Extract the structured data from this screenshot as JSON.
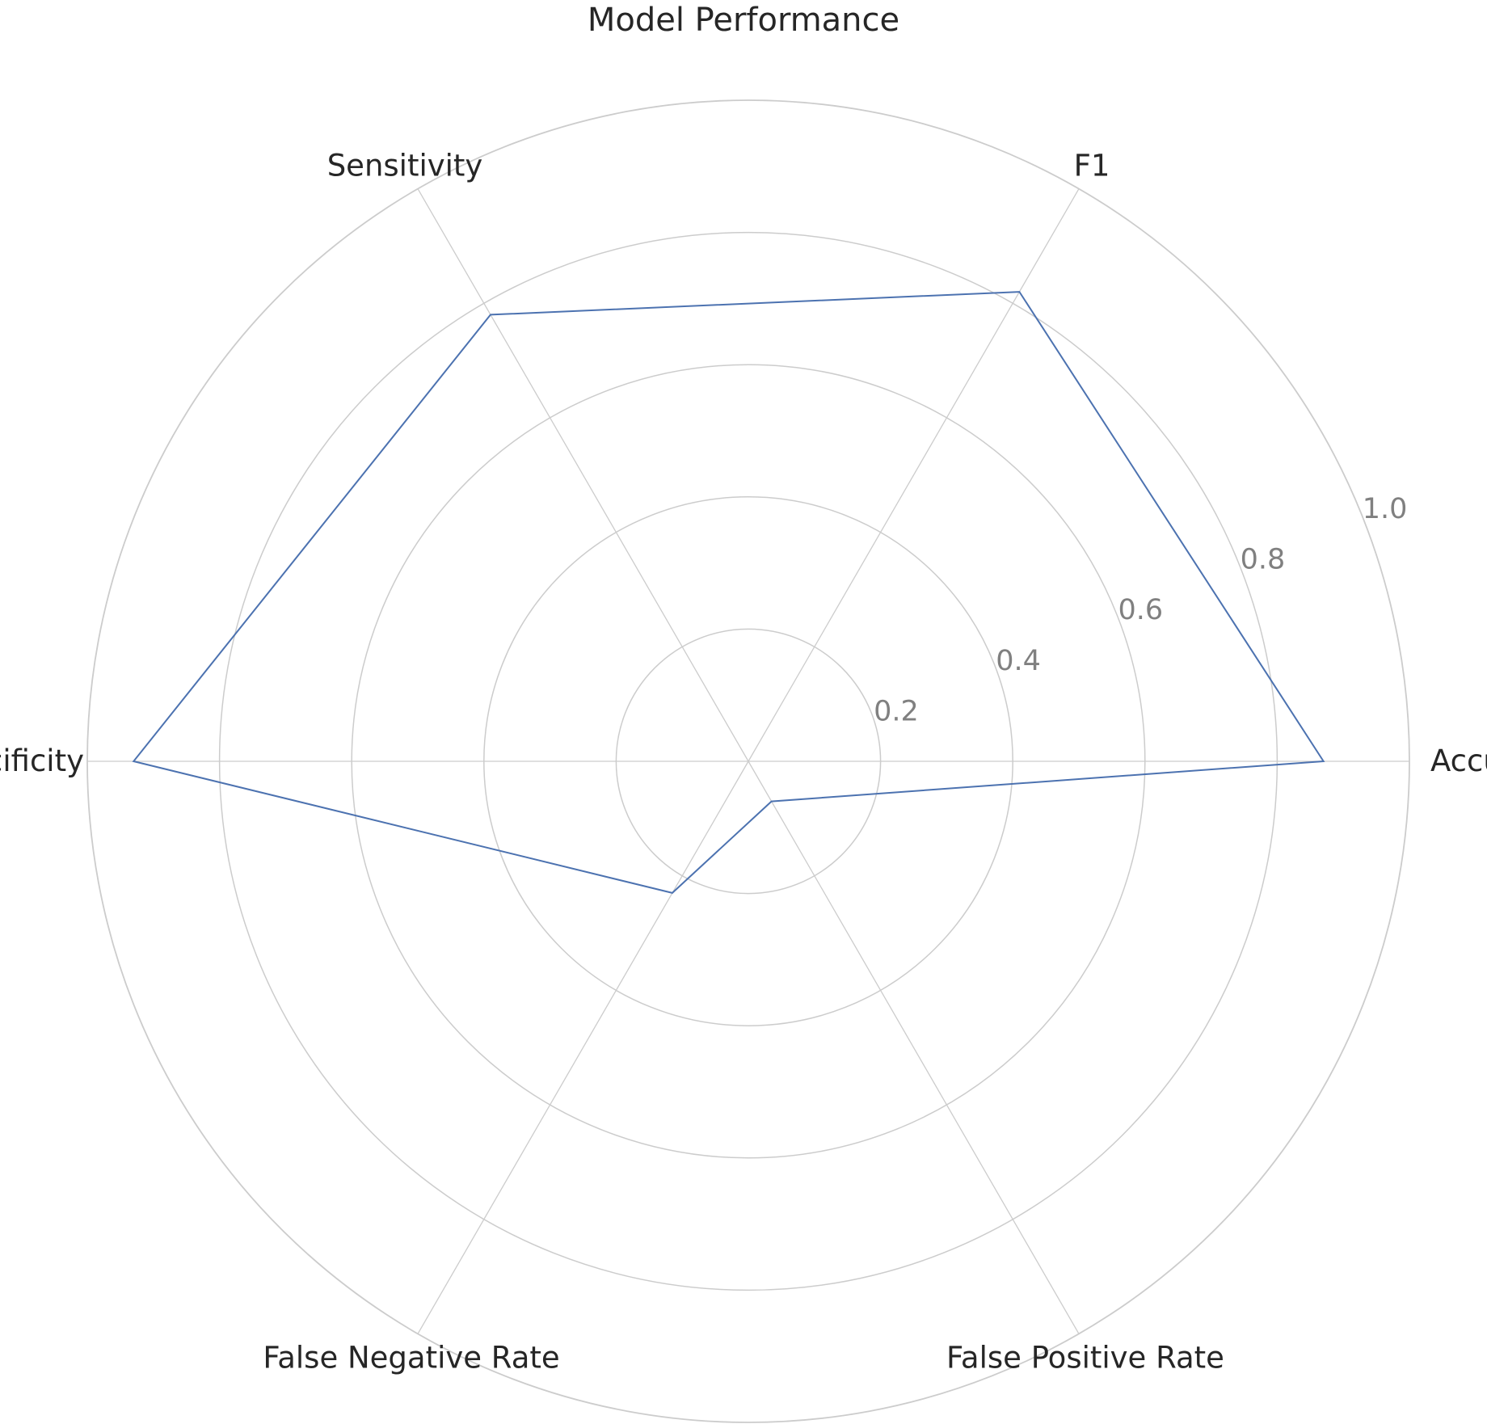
{
  "chart_data": {
    "type": "radar",
    "title": "Model Performance",
    "categories": [
      "Accurary",
      "F1",
      "Sensitivity",
      "Specificity",
      "False Negative Rate",
      "False Positive Rate"
    ],
    "values": [
      0.87,
      0.82,
      0.78,
      0.93,
      0.23,
      0.07
    ],
    "rlim": [
      0,
      1.0
    ],
    "r_ticks": [
      "0.2",
      "0.4",
      "0.6",
      "0.8",
      "1.0"
    ],
    "grid": true,
    "colors": {
      "series": "#4c72b0",
      "grid": "#cccccc",
      "text": "#262626",
      "tick_text": "#808080"
    }
  }
}
